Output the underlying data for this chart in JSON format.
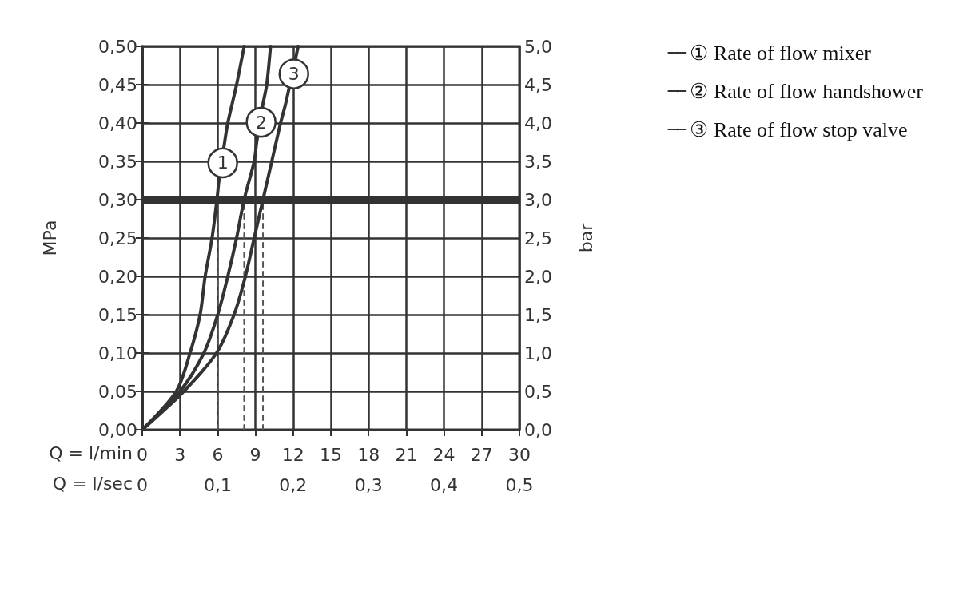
{
  "chart_data": {
    "type": "line",
    "xlabel": "Q = l/min",
    "x2label": "Q = l/sec",
    "ylabel": "MPa",
    "y2label": "bar",
    "xlim": [
      0,
      30
    ],
    "xticks": [
      0,
      3,
      6,
      9,
      12,
      15,
      18,
      21,
      24,
      27,
      30
    ],
    "x2lim": [
      0,
      0.5
    ],
    "x2ticks": [
      {
        "value": 0,
        "label": "0"
      },
      {
        "value": 0.1,
        "label": "0,1"
      },
      {
        "value": 0.2,
        "label": "0,2"
      },
      {
        "value": 0.3,
        "label": "0,3"
      },
      {
        "value": 0.4,
        "label": "0,4"
      },
      {
        "value": 0.5,
        "label": "0,5"
      }
    ],
    "ylim": [
      0,
      0.5
    ],
    "yticks": [
      {
        "value": 0,
        "label": "0,00"
      },
      {
        "value": 0.05,
        "label": "0,05"
      },
      {
        "value": 0.1,
        "label": "0,10"
      },
      {
        "value": 0.15,
        "label": "0,15"
      },
      {
        "value": 0.2,
        "label": "0,20"
      },
      {
        "value": 0.25,
        "label": "0,25"
      },
      {
        "value": 0.3,
        "label": "0,30"
      },
      {
        "value": 0.35,
        "label": "0,35"
      },
      {
        "value": 0.4,
        "label": "0,40"
      },
      {
        "value": 0.45,
        "label": "0,45"
      },
      {
        "value": 0.5,
        "label": "0,50"
      }
    ],
    "y2lim": [
      0,
      5
    ],
    "y2ticks": [
      {
        "value": 0,
        "label": "0,0"
      },
      {
        "value": 0.5,
        "label": "0,5"
      },
      {
        "value": 1,
        "label": "1,0"
      },
      {
        "value": 1.5,
        "label": "1,5"
      },
      {
        "value": 2,
        "label": "2,0"
      },
      {
        "value": 2.5,
        "label": "2,5"
      },
      {
        "value": 3,
        "label": "3,0"
      },
      {
        "value": 3.5,
        "label": "3,5"
      },
      {
        "value": 4,
        "label": "4,0"
      },
      {
        "value": 4.5,
        "label": "4,5"
      },
      {
        "value": 5,
        "label": "5,0"
      }
    ],
    "grid": true,
    "legend": "top right",
    "marker": "none",
    "line_style": "solid",
    "series": [
      {
        "name": "① Rate of flow mixer",
        "color": "#333333",
        "x": [
          0,
          2.7,
          3.8,
          4.6,
          5.0,
          5.55,
          5.94,
          6.1,
          6.55,
          6.8,
          7.5,
          8.1
        ],
        "values": [
          0,
          0.05,
          0.1,
          0.15,
          0.2,
          0.25,
          0.3,
          0.325,
          0.375,
          0.4,
          0.45,
          0.5
        ]
      },
      {
        "name": "② Rate of flow handshower",
        "color": "#333333",
        "x": [
          0,
          3.0,
          4.9,
          6.0,
          6.8,
          7.5,
          8.1,
          8.9,
          9.1,
          9.6,
          9.9,
          10.2
        ],
        "values": [
          0,
          0.05,
          0.1,
          0.15,
          0.2,
          0.25,
          0.3,
          0.35,
          0.375,
          0.425,
          0.45,
          0.5
        ]
      },
      {
        "name": "③ Rate of flow stop valve",
        "color": "#333333",
        "x": [
          0,
          3.3,
          5.9,
          7.3,
          8.2,
          8.9,
          9.6,
          10.3,
          11.0,
          11.4,
          12.4
        ],
        "values": [
          0,
          0.05,
          0.1,
          0.15,
          0.2,
          0.25,
          0.3,
          0.35,
          0.4,
          0.425,
          0.5
        ]
      },
      {
        "color": "#555555",
        "line_style": "dashed",
        "x": [
          6,
          6
        ],
        "values": [
          0,
          0.3
        ]
      },
      {
        "color": "#555555",
        "line_style": "dashed",
        "x": [
          8.1,
          8.1
        ],
        "values": [
          0,
          0.3
        ]
      },
      {
        "color": "#555555",
        "line_style": "dashed",
        "x": [
          9.6,
          9.6
        ],
        "values": [
          0,
          0.3
        ]
      }
    ],
    "ref_lines": [
      {
        "axis": "y",
        "value": 0.3,
        "color": "#333333"
      }
    ],
    "annotations": [
      {
        "text": "1",
        "x": 6.4,
        "y": 0.348
      },
      {
        "text": "2",
        "x": 9.45,
        "y": 0.401
      },
      {
        "text": "3",
        "x": 12.06,
        "y": 0.464
      }
    ]
  }
}
